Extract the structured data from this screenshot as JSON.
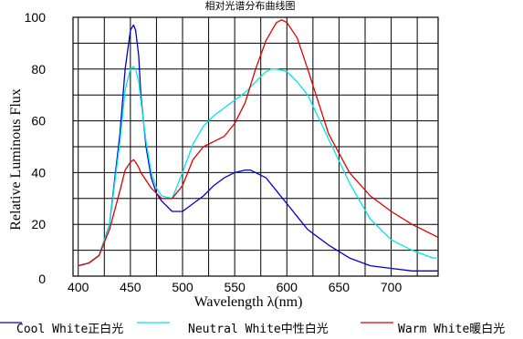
{
  "chart_data": {
    "type": "line",
    "title": "相对光谱分布曲线图",
    "xlabel": "Wavelength λ(nm)",
    "ylabel": "Relative Luminous Flux",
    "xlim": [
      395,
      745
    ],
    "ylim": [
      0,
      100
    ],
    "x_ticks": [
      400,
      450,
      500,
      550,
      600,
      650,
      700
    ],
    "y_ticks": [
      0,
      20,
      40,
      60,
      80,
      100
    ],
    "grid": true,
    "legend_position": "bottom",
    "series": [
      {
        "name": "Cool White正白光",
        "color": "#0000cc",
        "x": [
          400,
          410,
          420,
          430,
          440,
          445,
          450,
          453,
          455,
          458,
          460,
          465,
          470,
          475,
          480,
          490,
          500,
          510,
          520,
          530,
          540,
          550,
          560,
          565,
          570,
          580,
          590,
          600,
          610,
          620,
          640,
          660,
          680,
          700,
          720,
          740,
          745
        ],
        "y": [
          4,
          5,
          8,
          20,
          55,
          80,
          95,
          97,
          95,
          85,
          70,
          50,
          38,
          32,
          29,
          25,
          25,
          28,
          31,
          35,
          38,
          40,
          41,
          41,
          40,
          38,
          33,
          28,
          23,
          18,
          12,
          7,
          4,
          3,
          2,
          2,
          2
        ]
      },
      {
        "name": "Neutral White中性白光",
        "color": "#00e5e5",
        "x": [
          400,
          410,
          420,
          430,
          440,
          445,
          450,
          453,
          455,
          458,
          460,
          465,
          470,
          475,
          480,
          490,
          500,
          510,
          520,
          530,
          540,
          550,
          560,
          570,
          580,
          585,
          590,
          600,
          610,
          620,
          640,
          660,
          680,
          700,
          720,
          740,
          745
        ],
        "y": [
          4,
          5,
          8,
          20,
          52,
          72,
          80,
          81,
          80,
          75,
          68,
          52,
          40,
          34,
          31,
          30,
          40,
          51,
          58,
          62,
          65,
          68,
          71,
          75,
          79,
          80,
          80,
          79,
          75,
          70,
          53,
          36,
          22,
          14,
          10,
          7,
          7
        ]
      },
      {
        "name": "Warm White暖白光",
        "color": "#dd0000",
        "x": [
          400,
          410,
          420,
          430,
          440,
          445,
          450,
          453,
          455,
          458,
          460,
          465,
          470,
          475,
          480,
          490,
          500,
          510,
          520,
          530,
          540,
          550,
          560,
          570,
          580,
          590,
          595,
          600,
          610,
          620,
          640,
          660,
          680,
          700,
          720,
          740,
          745
        ],
        "y": [
          4,
          5,
          8,
          18,
          33,
          41,
          44,
          45,
          44,
          42,
          40,
          37,
          34,
          32,
          30,
          30,
          35,
          45,
          50,
          52,
          54,
          59,
          67,
          80,
          91,
          98,
          99,
          98,
          92,
          80,
          55,
          40,
          31,
          25,
          20,
          16,
          15
        ]
      }
    ]
  }
}
